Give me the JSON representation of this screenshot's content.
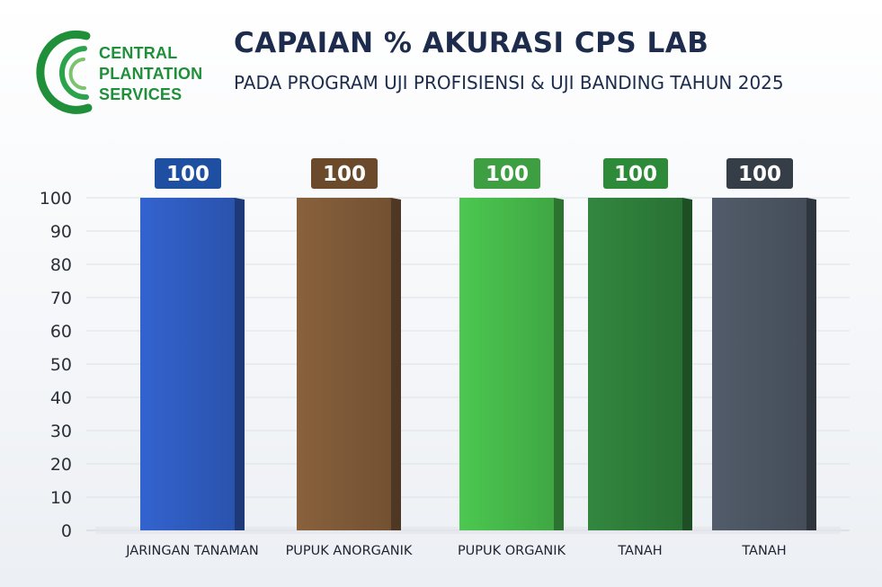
{
  "logo": {
    "name": "logo-central-plantation-services",
    "lines": [
      "CENTRAL",
      "PLANTATION",
      "SERVICES"
    ]
  },
  "header": {
    "title": "CAPAIAN % AKURASI CPS LAB",
    "subtitle": "PADA PROGRAM UJI PROFISIENSI & UJI BANDING TAHUN 2025"
  },
  "chart_data": {
    "type": "bar",
    "title": "CAPAIAN % AKURASI CPS LAB",
    "subtitle": "PADA PROGRAM UJI PROFISIENSI & UJI BANDING TAHUN 2025",
    "categories": [
      "JARINGAN TANAMAN",
      "PUPUK ANORGANIK",
      "PUPUK ORGANIK",
      "TANAH",
      "TANAH"
    ],
    "values": [
      100,
      100,
      100,
      100,
      100
    ],
    "data_labels": [
      "100",
      "100",
      "100",
      "100",
      "100"
    ],
    "colors": [
      "#2f5cc0",
      "#7f5a38",
      "#46b94a",
      "#2e7d3a",
      "#4c5562"
    ],
    "label_colors": [
      "#1f4fa0",
      "#6b4a2c",
      "#3d9f42",
      "#2d8a39",
      "#353d47"
    ],
    "ylim": [
      0,
      100
    ],
    "yticks": [
      0,
      10,
      20,
      30,
      40,
      50,
      60,
      70,
      80,
      90,
      100
    ],
    "xlabel": "",
    "ylabel": "",
    "grid": true,
    "legend": "none"
  }
}
